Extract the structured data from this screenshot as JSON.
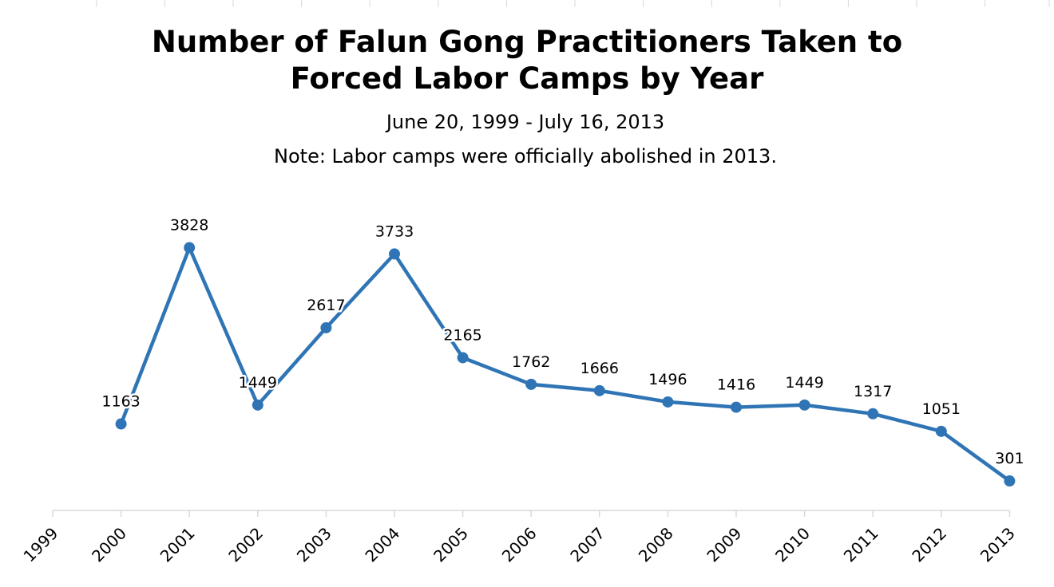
{
  "header": {
    "title_line1": "Number of Falun Gong Practitioners Taken to",
    "title_line2": "Forced Labor Camps by Year",
    "subtitle": "June 20, 1999 - July 16, 2013",
    "note": "Note: Labor camps were officially abolished in 2013."
  },
  "chart_data": {
    "type": "line",
    "title": "Number of Falun Gong Practitioners Taken to Forced Labor Camps by Year",
    "subtitle": "June 20, 1999 - July 16, 2013",
    "annotations": [
      "Note: Labor camps were officially abolished in 2013."
    ],
    "categories": [
      "1999",
      "2000",
      "2001",
      "2002",
      "2003",
      "2004",
      "2005",
      "2006",
      "2007",
      "2008",
      "2009",
      "2010",
      "2011",
      "2012",
      "2013"
    ],
    "series": [
      {
        "values": [
          null,
          1163,
          3828,
          1449,
          2617,
          3733,
          2165,
          1762,
          1666,
          1496,
          1416,
          1449,
          1317,
          1051,
          301
        ],
        "color": "#2f75b5"
      }
    ],
    "data_labels": true,
    "xlabel": "",
    "ylabel": "",
    "ylim": [
      0,
      4100
    ],
    "y_axis_visible": false,
    "grid": false,
    "legend": "none"
  }
}
